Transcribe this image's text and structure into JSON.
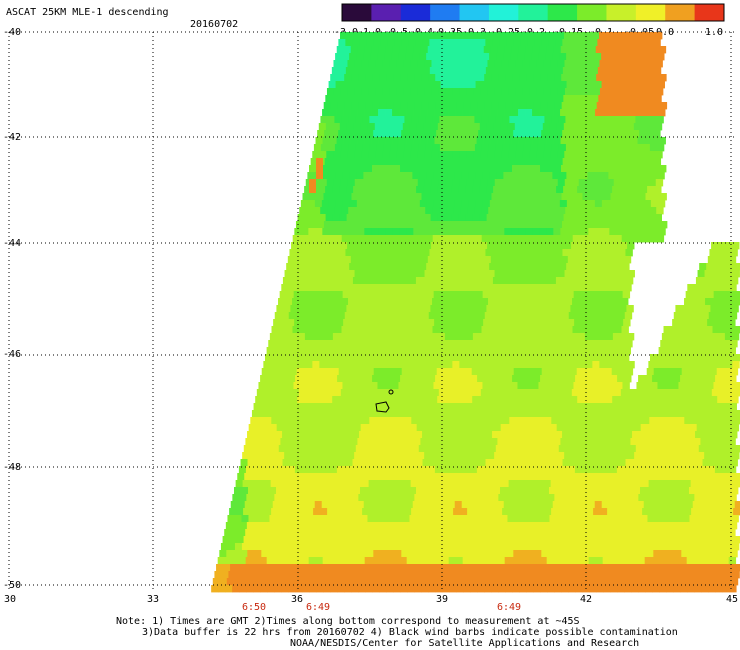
{
  "header": {
    "title": "ASCAT 25KM MLE-1 descending",
    "date": "20160702"
  },
  "colorbar": {
    "tick_labels": [
      "-3.0",
      "-1.0",
      "-0.5",
      "-0.4",
      "-0.35",
      "-0.3",
      "-0.25",
      "-0.2",
      "-0.15",
      "-0.1",
      "-0.05",
      "0.0",
      "1.0"
    ],
    "colors": [
      "#2a0a3a",
      "#5a1fb0",
      "#1a2bd8",
      "#1f7cf2",
      "#22c6f2",
      "#22f2d8",
      "#22f29a",
      "#2de84a",
      "#7cec2a",
      "#c8f02a",
      "#f0f028",
      "#f0a020",
      "#e8361a"
    ]
  },
  "map": {
    "lat_labels": [
      "-40",
      "-42",
      "-44",
      "-46",
      "-48",
      "-50"
    ],
    "lon_labels": [
      "30",
      "33",
      "36",
      "39",
      "42",
      "45"
    ],
    "time_labels": [
      "6:50",
      "6:49",
      "6:49"
    ]
  },
  "notes": [
    "Note: 1) Times are GMT 2)Times along bottom correspond to measurement at ~45S",
    "3)Data buffer is 22 hrs from 20160702 4) Black wind barbs indicate possible contamination",
    "NOAA/NESDIS/Center for Satellite Applications and Research"
  ]
}
